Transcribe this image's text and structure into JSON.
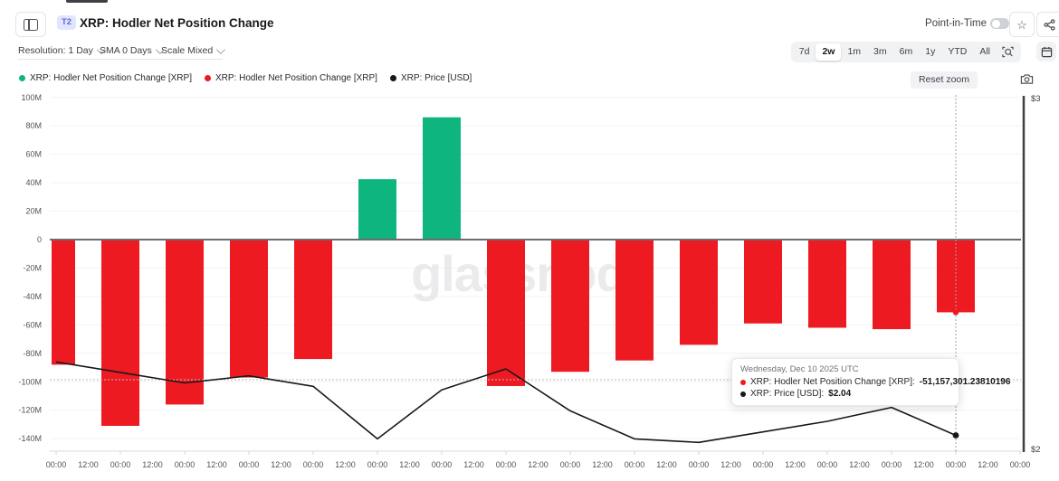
{
  "header": {
    "badge": "T2",
    "title": "XRP: Hodler Net Position Change",
    "point_in_time_label": "Point-in-Time"
  },
  "toolbar": {
    "resolution": "Resolution: 1 Day",
    "sma": "SMA 0 Days",
    "scale": "Scale Mixed",
    "ranges": [
      "7d",
      "2w",
      "1m",
      "3m",
      "6m",
      "1y",
      "YTD",
      "All"
    ],
    "active_range": "2w"
  },
  "legend": {
    "items": [
      {
        "color": "#0fb57f",
        "label": "XRP: Hodler Net Position Change [XRP]"
      },
      {
        "color": "#ee1a22",
        "label": "XRP: Hodler Net Position Change [XRP]"
      },
      {
        "color": "#18181b",
        "label": "XRP: Price [USD]"
      }
    ],
    "reset_zoom_label": "Reset zoom"
  },
  "watermark": "glassnode",
  "tooltip": {
    "date": "Wednesday, Dec 10 2025 UTC",
    "rows": [
      {
        "color": "#ee1a22",
        "label": "XRP: Hodler Net Position Change [XRP]:",
        "value": "-51,157,301.23810196"
      },
      {
        "color": "#18181b",
        "label": "XRP: Price [USD]:",
        "value": "$2.04"
      }
    ]
  },
  "chart_data": {
    "type": "mixed",
    "title": "XRP: Hodler Net Position Change",
    "resolution": "1 Day",
    "x_labels": [
      "00:00",
      "12:00",
      "00:00",
      "12:00",
      "00:00",
      "12:00",
      "00:00",
      "12:00",
      "00:00",
      "12:00",
      "00:00",
      "12:00",
      "00:00",
      "12:00",
      "00:00",
      "12:00",
      "00:00",
      "12:00",
      "00:00",
      "12:00",
      "00:00",
      "12:00",
      "00:00",
      "12:00",
      "00:00",
      "12:00",
      "00:00",
      "12:00",
      "00:00",
      "12:00",
      "00:00"
    ],
    "bar_series": {
      "name": "XRP: Hodler Net Position Change [XRP]",
      "type": "bar",
      "unit": "XRP, millions",
      "positive_color": "#0fb57f",
      "negative_color": "#ee1a22",
      "values_millions": [
        -88,
        -131,
        -116,
        -97,
        -84,
        42.5,
        86,
        -103,
        -93,
        -85,
        -74,
        -59,
        -62,
        -63,
        -51.157301
      ]
    },
    "line_series": {
      "name": "XRP: Price [USD]",
      "type": "line",
      "color": "#18181b",
      "values_usd": [
        2.25,
        2.22,
        2.19,
        2.21,
        2.18,
        2.03,
        2.17,
        2.23,
        2.11,
        2.03,
        2.02,
        2.05,
        2.08,
        2.12,
        2.04
      ]
    },
    "y_left": {
      "tick_values_millions": [
        100,
        80,
        60,
        40,
        20,
        0,
        -20,
        -40,
        -60,
        -80,
        -100,
        -120,
        -140
      ],
      "tick_labels": [
        "100M",
        "80M",
        "60M",
        "40M",
        "20M",
        "0",
        "-20M",
        "-40M",
        "-60M",
        "-80M",
        "-100M",
        "-120M",
        "-140M"
      ],
      "range_millions": [
        -152,
        100
      ]
    },
    "y_right": {
      "top_label": "$3",
      "bottom_label": "$2",
      "min": 2,
      "max": 3
    },
    "highlight_index": 14,
    "grid": true,
    "legend_position": "top-left"
  }
}
